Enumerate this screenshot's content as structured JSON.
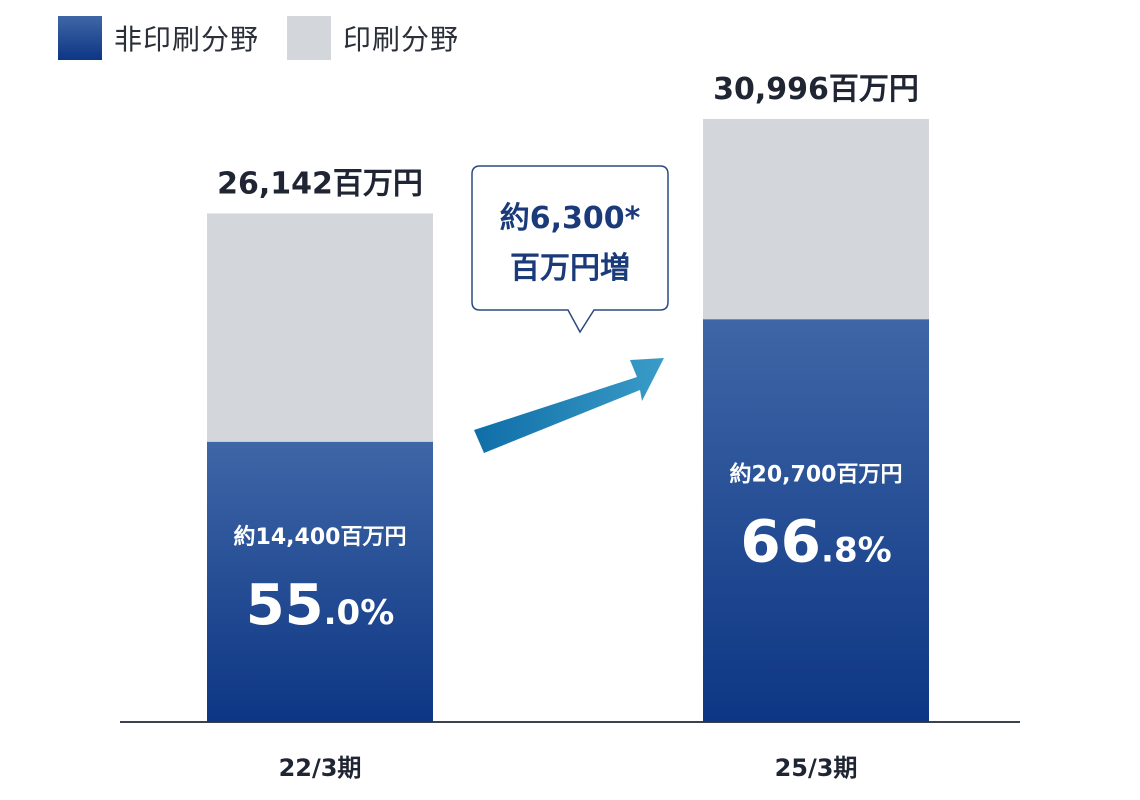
{
  "legend": [
    {
      "label": "非印刷分野",
      "color_top": "#3f66a6",
      "color_bottom": "#0d3684"
    },
    {
      "label": "印刷分野",
      "color": "#d3d6da"
    }
  ],
  "callout": {
    "line1": "約6,300*",
    "line2": "百万円増"
  },
  "chart_data": {
    "type": "bar",
    "stacked": true,
    "categories": [
      "22/3期",
      "25/3期"
    ],
    "series": [
      {
        "name": "非印刷分野",
        "values": [
          14400,
          20700
        ],
        "share_labels": [
          "約14,400百万円",
          "約20,700百万円"
        ],
        "percent_int": [
          "55",
          "66"
        ],
        "percent_dec": [
          ".0%",
          ".8%"
        ]
      },
      {
        "name": "印刷分野",
        "values": [
          11742,
          10296
        ]
      }
    ],
    "totals": [
      26142,
      30996
    ],
    "total_labels": [
      "26,142百万円",
      "30,996百万円"
    ],
    "increase_label": "約6,300* 百万円増",
    "ylim": [
      0,
      33000
    ],
    "grid": false,
    "legend_position": "top-left"
  }
}
